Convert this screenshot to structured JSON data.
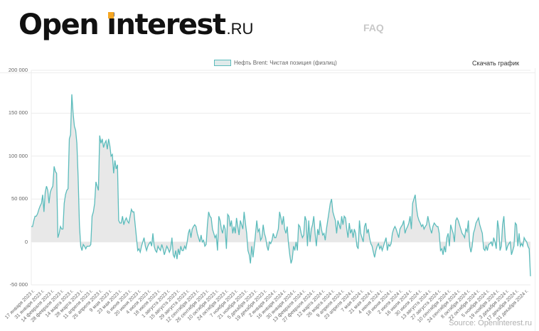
{
  "header": {
    "logo_word1": "Open",
    "logo_word2": "interest",
    "logo_suffix": ".RU",
    "nav_faq": "FAQ"
  },
  "toolbar": {
    "download_label": "Скачать график"
  },
  "footer": {
    "source": "Source: Openinterest.ru"
  },
  "colors": {
    "line": "#5cbcbc",
    "fill": "#e8e8e8",
    "accent": "#f5a623",
    "grid": "#ebebeb"
  },
  "chart_data": {
    "type": "area",
    "title": "",
    "legend": [
      "Нефть Brent: Чистая позиция (физлиц)"
    ],
    "xlabel": "",
    "ylabel": "",
    "ylim": [
      -50000,
      200000
    ],
    "yticks": [
      200000,
      150000,
      100000,
      50000,
      0,
      -50000
    ],
    "ytick_labels": [
      "200 000",
      "150 000",
      "100 000",
      "50 000",
      "0",
      "-50 000"
    ],
    "grid": true,
    "x_tick_labels": [
      "17 января 2023 г.",
      "31 января 2023 г.",
      "14 февраля 2023 г.",
      "28 февраля 2023 г.",
      "14 марта 2023 г.",
      "28 марта 2023 г.",
      "11 апреля 2023 г.",
      "25 апреля 2023 г.",
      "9 мая 2023 г.",
      "23 мая 2023 г.",
      "6 июня 2023 г.",
      "20 июня 2023 г.",
      "4 июля 2023 г.",
      "18 июля 2023 г.",
      "1 августа 2023 г.",
      "15 августа 2023 г.",
      "29 августа 2023 г.",
      "12 сентября 2023 г.",
      "26 сентября 2023 г.",
      "10 октября 2023 г.",
      "24 октября 2023 г.",
      "7 ноября 2023 г.",
      "21 ноября 2023 г.",
      "5 декабря 2023 г.",
      "19 декабря 2023 г.",
      "2 января 2024 г.",
      "16 января 2024 г.",
      "30 января 2024 г.",
      "13 февраля 2024 г.",
      "27 февраля 2024 г.",
      "12 марта 2024 г.",
      "26 марта 2024 г.",
      "9 апреля 2024 г.",
      "23 апреля 2024 г.",
      "7 мая 2024 г.",
      "21 мая 2024 г.",
      "4 июня 2024 г.",
      "18 июня 2024 г.",
      "2 июля 2024 г.",
      "16 июля 2024 г.",
      "30 июля 2024 г.",
      "13 августа 2024 г.",
      "27 августа 2024 г.",
      "10 сентября 2024 г.",
      "24 сентября 2024 г.",
      "8 октября 2024 г.",
      "22 октября 2024 г.",
      "5 ноября 2024 г.",
      "19 ноября 2024 г.",
      "3 декабря 2024 г.",
      "17 декабря 2024 г.",
      "31 декабря 2024 г."
    ],
    "series": [
      {
        "name": "Нефть Brent: Чистая позиция (физлиц)",
        "values_thousands": [
          18,
          18,
          25,
          30,
          30,
          33,
          38,
          42,
          45,
          55,
          35,
          58,
          65,
          60,
          45,
          58,
          62,
          65,
          88,
          82,
          80,
          5,
          10,
          18,
          15,
          15,
          45,
          55,
          60,
          62,
          120,
          125,
          172,
          150,
          135,
          130,
          115,
          75,
          20,
          -5,
          -10,
          -3,
          -5,
          -8,
          -5,
          -5,
          -5,
          -3,
          30,
          35,
          45,
          70,
          65,
          60,
          124,
          115,
          120,
          110,
          115,
          118,
          108,
          120,
          112,
          100,
          102,
          80,
          95,
          85,
          90,
          25,
          22,
          22,
          30,
          20,
          25,
          28,
          24,
          22,
          30,
          38,
          35,
          35,
          20,
          5,
          -10,
          -8,
          -12,
          -5,
          0,
          5,
          -5,
          -10,
          -5,
          -2,
          0,
          -5,
          10,
          -5,
          -10,
          -12,
          -5,
          -8,
          -10,
          -3,
          -8,
          -15,
          -10,
          -5,
          -8,
          -12,
          -8,
          5,
          -15,
          -18,
          -10,
          -20,
          -8,
          -15,
          -5,
          -10,
          -10,
          -5,
          -8,
          0,
          10,
          15,
          5,
          15,
          18,
          20,
          18,
          10,
          5,
          0,
          8,
          0,
          2,
          -5,
          -3,
          20,
          35,
          30,
          28,
          15,
          10,
          5,
          8,
          -10,
          30,
          25,
          15,
          10,
          20,
          15,
          -8,
          32,
          30,
          18,
          25,
          10,
          18,
          10,
          28,
          18,
          8,
          25,
          20,
          15,
          35,
          22,
          10,
          -10,
          -15,
          -25,
          -5,
          -18,
          -5,
          10,
          25,
          12,
          15,
          2,
          5,
          20,
          10,
          5,
          -5,
          -10,
          0,
          -2,
          2,
          10,
          5,
          5,
          10,
          15,
          35,
          28,
          20,
          30,
          15,
          10,
          18,
          -2,
          -15,
          -25,
          -20,
          -5,
          -10,
          0,
          -10,
          20,
          18,
          10,
          5,
          8,
          30,
          25,
          -5,
          25,
          0,
          15,
          20,
          30,
          10,
          -5,
          15,
          8,
          25,
          15,
          8,
          10,
          2,
          15,
          25,
          35,
          45,
          50,
          35,
          30,
          25,
          10,
          25,
          20,
          15,
          30,
          20,
          30,
          28,
          15,
          5,
          22,
          10,
          15,
          5,
          15,
          10,
          -5,
          -8,
          25,
          10,
          5,
          0,
          18,
          22,
          10,
          15,
          5,
          -2,
          -5,
          -12,
          -18,
          -10,
          -5,
          -2,
          -8,
          -5,
          -10,
          -5,
          0,
          5,
          -10,
          -3,
          -5,
          -2,
          10,
          15,
          18,
          15,
          10,
          5,
          15,
          18,
          20,
          25,
          10,
          15,
          18,
          22,
          30,
          15,
          45,
          50,
          55,
          40,
          30,
          25,
          22,
          18,
          20,
          15,
          18,
          20,
          30,
          22,
          15,
          10,
          18,
          22,
          20,
          18,
          18,
          10,
          -10,
          -8,
          -15,
          -5,
          -12,
          5,
          10,
          -5,
          20,
          15,
          10,
          0,
          25,
          28,
          25,
          20,
          15,
          10,
          8,
          5,
          15,
          12,
          25,
          -5,
          -12,
          -5,
          10,
          15,
          22,
          25,
          28,
          20,
          15,
          10,
          -8,
          -10,
          -5,
          -10,
          -3,
          -2,
          0,
          -5,
          5,
          0,
          -8,
          25,
          15,
          -10,
          -5,
          20,
          30,
          5,
          -10,
          -5,
          -2,
          0,
          -15,
          -10,
          -5,
          22,
          20,
          -5,
          10,
          -5,
          -2,
          -5,
          5,
          2,
          0,
          -5,
          -8,
          -40
        ]
      }
    ]
  }
}
